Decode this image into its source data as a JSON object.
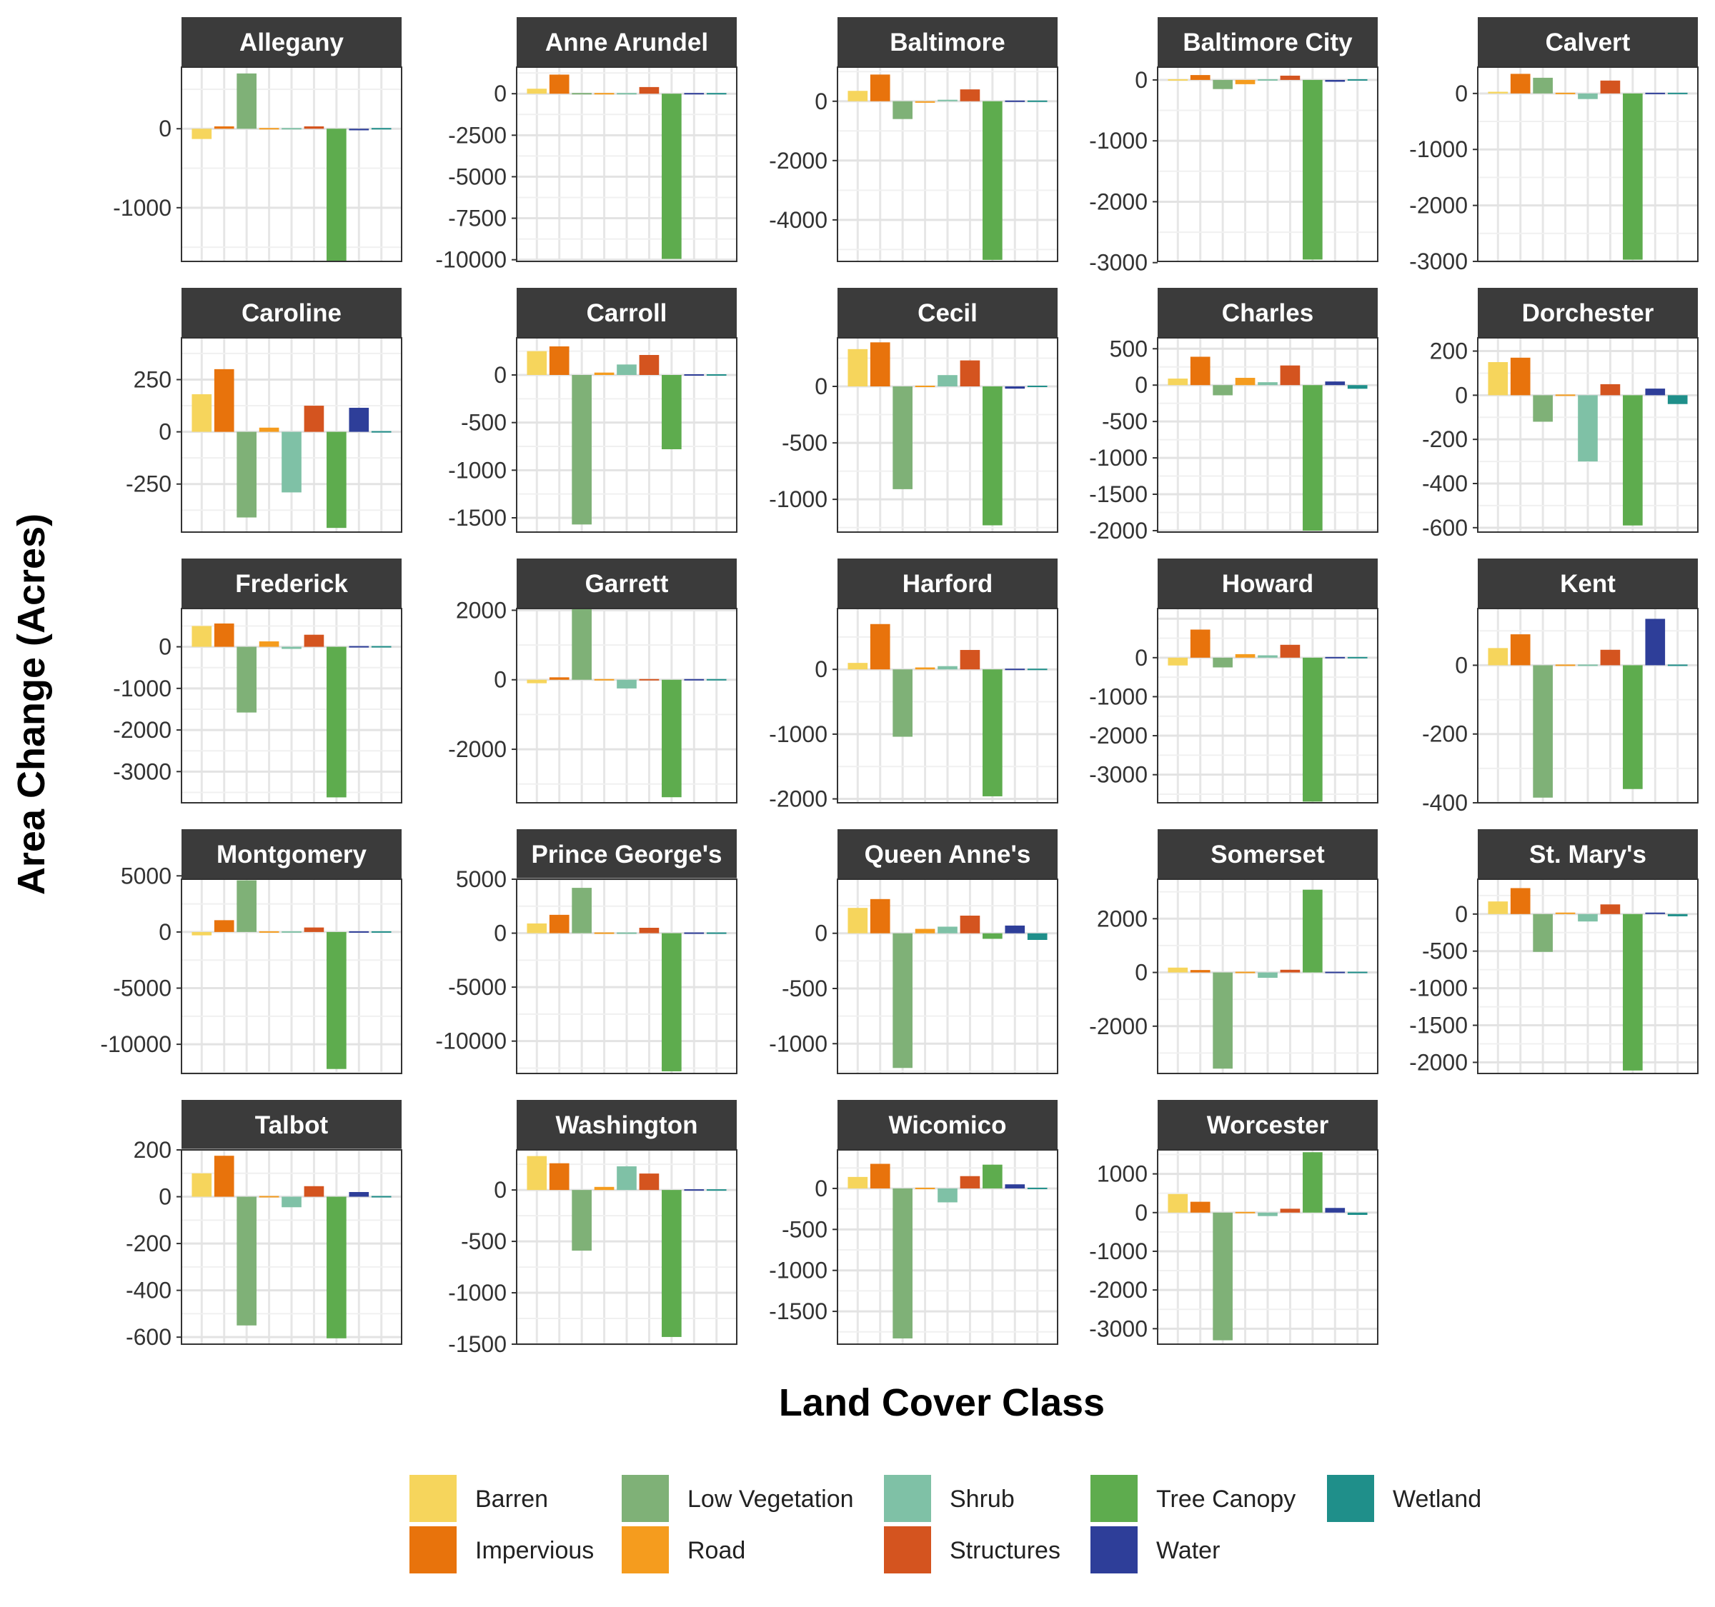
{
  "chart_data": {
    "type": "bar",
    "ylabel": "Area Change (Acres)",
    "xlabel": "Land Cover Class",
    "grid": true,
    "legend_position": "bottom",
    "categories": [
      "Barren",
      "Impervious",
      "Low Vegetation",
      "Road",
      "Shrub",
      "Structures",
      "Tree Canopy",
      "Water",
      "Wetland"
    ],
    "colors": {
      "Barren": "#F6D55C",
      "Impervious": "#E8730C",
      "Low Vegetation": "#7FB177",
      "Road": "#F59C1E",
      "Shrub": "#7FC1A6",
      "Structures": "#D4541F",
      "Tree Canopy": "#5EAC4E",
      "Water": "#2E3E99",
      "Wetland": "#1F8F8A"
    },
    "legend": [
      [
        "Barren",
        "Impervious"
      ],
      [
        "Low Vegetation",
        "Road"
      ],
      [
        "Shrub",
        "Structures"
      ],
      [
        "Tree Canopy",
        "Water"
      ],
      [
        "Wetland"
      ]
    ],
    "panels": [
      {
        "name": "Allegany",
        "ylim": [
          -1680,
          780
        ],
        "yticks": [
          0,
          -1000
        ],
        "values": [
          -130,
          30,
          700,
          10,
          15,
          30,
          -1680,
          -20,
          0
        ]
      },
      {
        "name": "Anne Arundel",
        "ylim": [
          -10100,
          1600
        ],
        "yticks": [
          0,
          -2500,
          -5000,
          -7500,
          -10000
        ],
        "values": [
          300,
          1150,
          0,
          0,
          50,
          400,
          -9950,
          50,
          0
        ]
      },
      {
        "name": "Baltimore",
        "ylim": [
          -5400,
          1150
        ],
        "yticks": [
          0,
          -2000,
          -4000
        ],
        "values": [
          350,
          900,
          -600,
          -50,
          50,
          400,
          -5350,
          0,
          0
        ]
      },
      {
        "name": "Baltimore City",
        "ylim": [
          -2980,
          210
        ],
        "yticks": [
          0,
          -1000,
          -2000,
          -3000
        ],
        "values": [
          20,
          80,
          -150,
          -70,
          20,
          70,
          -2950,
          -30,
          0
        ]
      },
      {
        "name": "Calvert",
        "ylim": [
          -3000,
          470
        ],
        "yticks": [
          0,
          -1000,
          -2000,
          -3000
        ],
        "values": [
          30,
          350,
          280,
          20,
          -100,
          230,
          -2970,
          0,
          0
        ]
      },
      {
        "name": "Caroline",
        "ylim": [
          -480,
          450
        ],
        "yticks": [
          250,
          0,
          -250
        ],
        "values": [
          180,
          300,
          -410,
          20,
          -290,
          125,
          -460,
          115,
          5
        ]
      },
      {
        "name": "Carroll",
        "ylim": [
          -1650,
          390
        ],
        "yticks": [
          0,
          -500,
          -1000,
          -1500
        ],
        "values": [
          250,
          300,
          -1570,
          25,
          110,
          210,
          -780,
          -10,
          0
        ]
      },
      {
        "name": "Cecil",
        "ylim": [
          -1290,
          430
        ],
        "yticks": [
          0,
          -500,
          -1000
        ],
        "values": [
          330,
          390,
          -910,
          0,
          100,
          230,
          -1230,
          -20,
          -10
        ]
      },
      {
        "name": "Charles",
        "ylim": [
          -2020,
          650
        ],
        "yticks": [
          500,
          0,
          -500,
          -1000,
          -1500,
          -2000
        ],
        "values": [
          90,
          390,
          -140,
          100,
          40,
          270,
          -2000,
          50,
          -50
        ]
      },
      {
        "name": "Dorchester",
        "ylim": [
          -620,
          260
        ],
        "yticks": [
          200,
          0,
          -200,
          -400,
          -600
        ],
        "values": [
          150,
          170,
          -120,
          5,
          -300,
          50,
          -590,
          30,
          -40
        ]
      },
      {
        "name": "Frederick",
        "ylim": [
          -3750,
          920
        ],
        "yticks": [
          0,
          -1000,
          -2000,
          -3000
        ],
        "values": [
          500,
          560,
          -1580,
          130,
          -50,
          290,
          -3620,
          30,
          0
        ]
      },
      {
        "name": "Garrett",
        "ylim": [
          -3540,
          2050
        ],
        "yticks": [
          2000,
          0,
          -2000
        ],
        "values": [
          -100,
          70,
          2050,
          0,
          -250,
          40,
          -3380,
          20,
          0
        ]
      },
      {
        "name": "Harford",
        "ylim": [
          -2060,
          940
        ],
        "yticks": [
          0,
          -1000,
          -2000
        ],
        "values": [
          100,
          700,
          -1040,
          30,
          50,
          300,
          -1960,
          -20,
          0
        ]
      },
      {
        "name": "Howard",
        "ylim": [
          -3720,
          1260
        ],
        "yticks": [
          0,
          -1000,
          -2000,
          -3000
        ],
        "values": [
          -200,
          720,
          -250,
          90,
          60,
          330,
          -3690,
          0,
          0
        ]
      },
      {
        "name": "Kent",
        "ylim": [
          -400,
          165
        ],
        "yticks": [
          0,
          -200,
          -400
        ],
        "values": [
          50,
          90,
          -385,
          0,
          0,
          45,
          -360,
          135,
          0
        ]
      },
      {
        "name": "Montgomery",
        "ylim": [
          -12600,
          4700
        ],
        "yticks": [
          5000,
          0,
          -5000,
          -10000
        ],
        "values": [
          -300,
          1050,
          4600,
          0,
          0,
          400,
          -12200,
          100,
          0
        ]
      },
      {
        "name": "Prince George's",
        "ylim": [
          -13000,
          5000
        ],
        "yticks": [
          5000,
          0,
          -5000,
          -10000
        ],
        "values": [
          900,
          1700,
          4200,
          100,
          -100,
          500,
          -12800,
          0,
          0
        ]
      },
      {
        "name": "Queen Anne's",
        "ylim": [
          -1270,
          490
        ],
        "yticks": [
          0,
          -500,
          -1000
        ],
        "values": [
          230,
          310,
          -1220,
          40,
          60,
          160,
          -50,
          70,
          -60
        ]
      },
      {
        "name": "Somerset",
        "ylim": [
          -3760,
          3470
        ],
        "yticks": [
          2000,
          0,
          -2000
        ],
        "values": [
          180,
          90,
          -3580,
          0,
          -200,
          100,
          3080,
          -30,
          -20
        ]
      },
      {
        "name": "St. Mary's",
        "ylim": [
          -2150,
          470
        ],
        "yticks": [
          0,
          -500,
          -1000,
          -1500,
          -2000
        ],
        "values": [
          170,
          350,
          -510,
          20,
          -100,
          130,
          -2110,
          20,
          -30
        ]
      },
      {
        "name": "Talbot",
        "ylim": [
          -630,
          200
        ],
        "yticks": [
          200,
          0,
          -200,
          -400,
          -600
        ],
        "values": [
          100,
          175,
          -550,
          5,
          -45,
          45,
          -605,
          20,
          0
        ]
      },
      {
        "name": "Washington",
        "ylim": [
          -1500,
          390
        ],
        "yticks": [
          0,
          -500,
          -1000,
          -1500
        ],
        "values": [
          330,
          260,
          -590,
          30,
          230,
          160,
          -1430,
          10,
          0
        ]
      },
      {
        "name": "Wicomico",
        "ylim": [
          -1900,
          470
        ],
        "yticks": [
          0,
          -500,
          -1000,
          -1500
        ],
        "values": [
          140,
          300,
          -1830,
          0,
          -170,
          150,
          290,
          50,
          0
        ]
      },
      {
        "name": "Worcester",
        "ylim": [
          -3400,
          1620
        ],
        "yticks": [
          1000,
          0,
          -1000,
          -2000,
          -3000
        ],
        "values": [
          480,
          280,
          -3300,
          20,
          -90,
          100,
          1560,
          120,
          -60
        ]
      }
    ]
  }
}
